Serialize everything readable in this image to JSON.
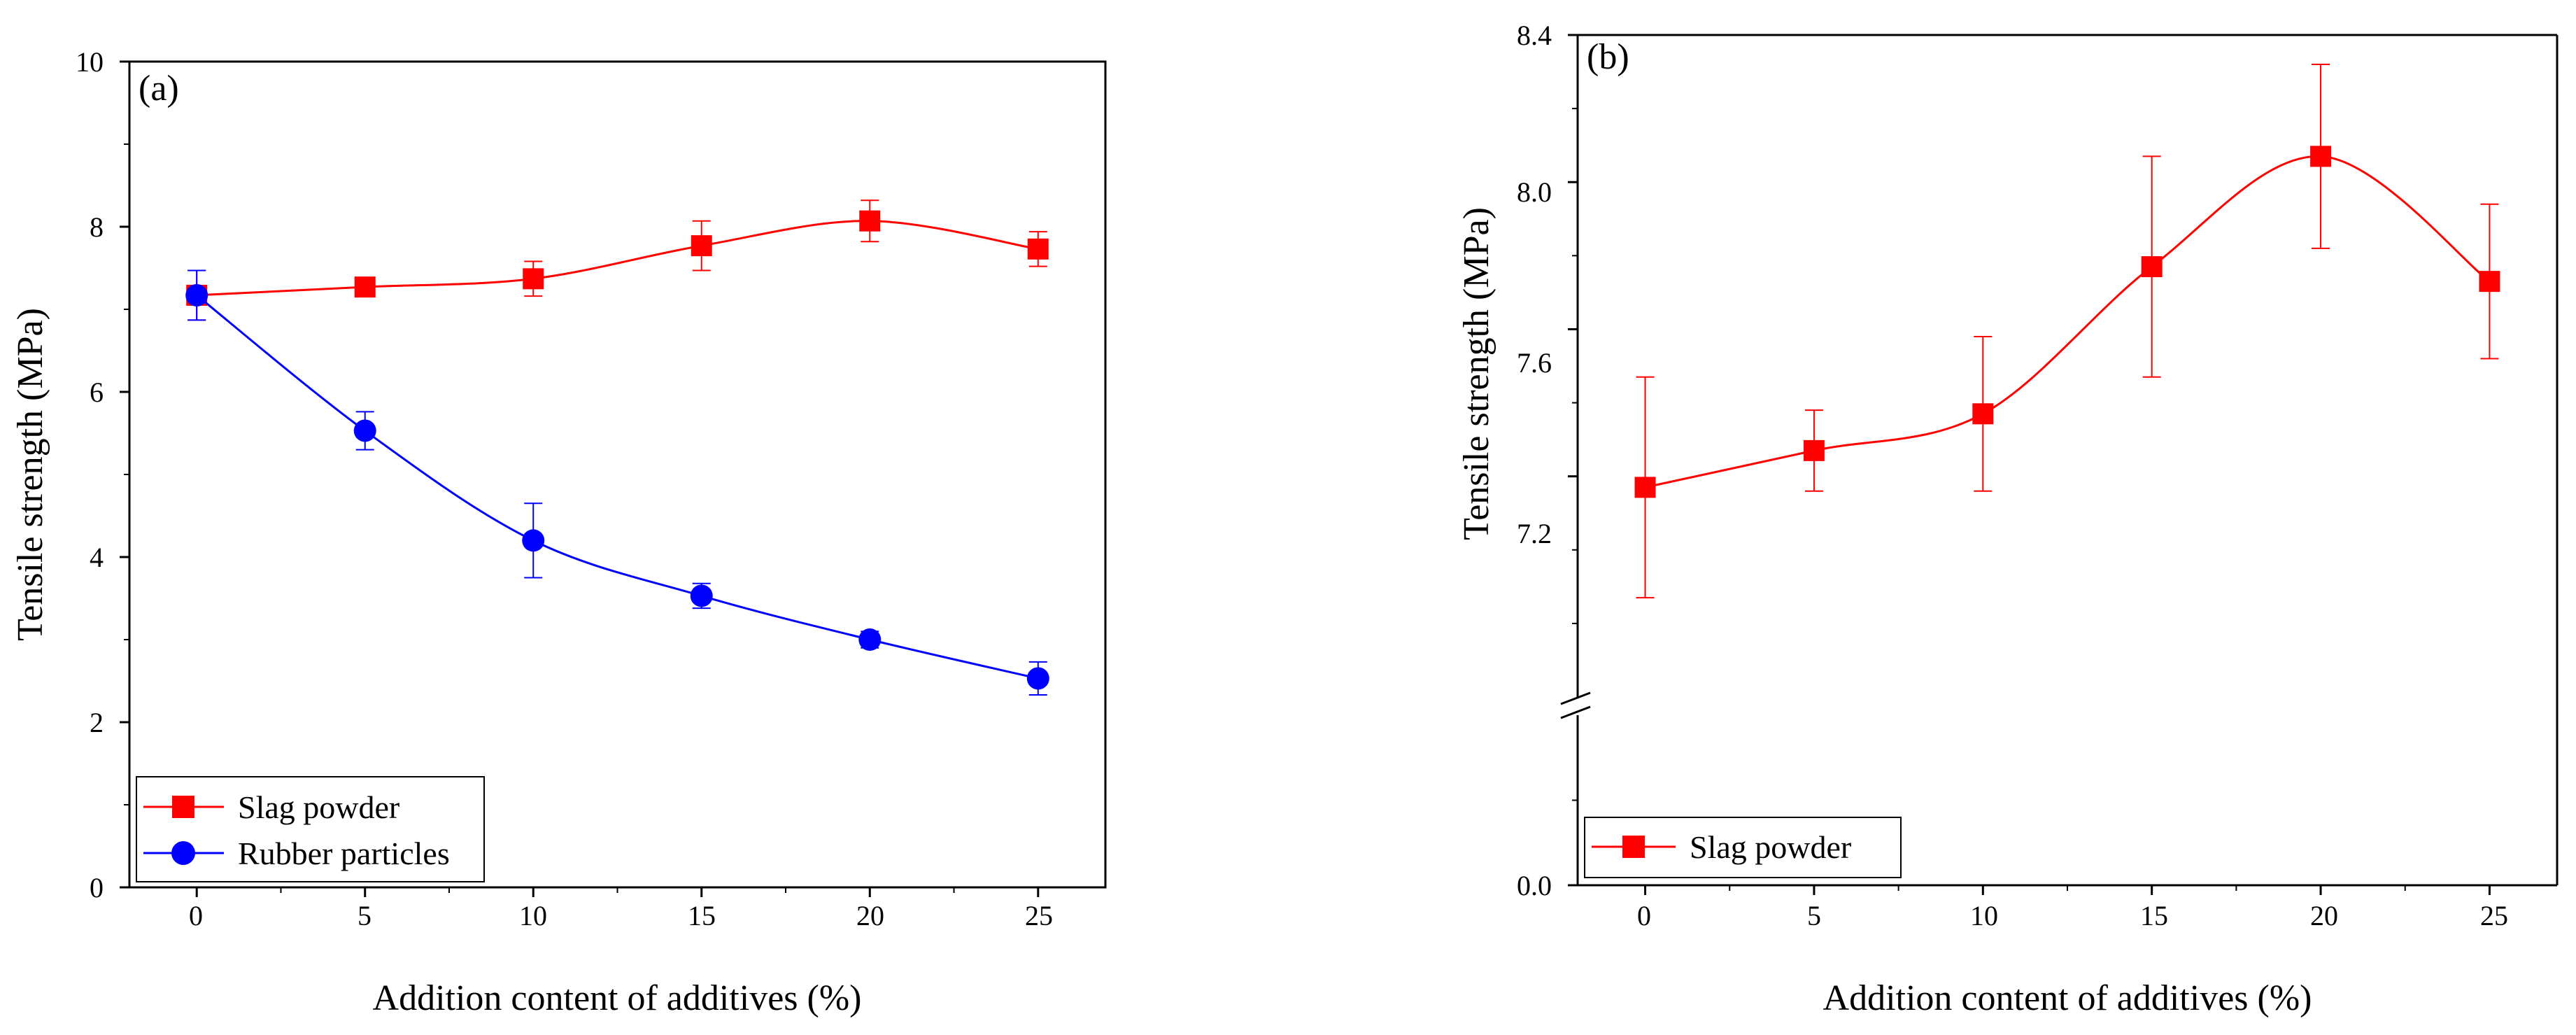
{
  "chart_data": [
    {
      "panel_label": "(a)",
      "type": "line",
      "xlabel": "Addition content of additives (%)",
      "ylabel": "Tensile strength (MPa)",
      "xlim": [
        -2,
        27
      ],
      "ylim": [
        0,
        10
      ],
      "x_ticks": [
        0,
        5,
        10,
        15,
        20,
        25
      ],
      "y_ticks": [
        0,
        2,
        4,
        6,
        8,
        10
      ],
      "x_tick_labels": [
        "0",
        "5",
        "10",
        "15",
        "20",
        "25"
      ],
      "y_tick_labels": [
        "0",
        "2",
        "4",
        "6",
        "8",
        "10"
      ],
      "legend_position": "bottom-left",
      "series": [
        {
          "name": "Slag powder",
          "color": "#ff0000",
          "marker": "square",
          "x": [
            0,
            5,
            10,
            15,
            20,
            25
          ],
          "values": [
            7.17,
            7.27,
            7.37,
            7.77,
            8.07,
            7.73
          ],
          "errors": [
            0.3,
            0.11,
            0.21,
            0.3,
            0.25,
            0.21
          ]
        },
        {
          "name": "Rubber particles",
          "color": "#0000ff",
          "marker": "circle",
          "x": [
            0,
            5,
            10,
            15,
            20,
            25
          ],
          "values": [
            7.17,
            5.53,
            4.2,
            3.53,
            3.0,
            2.53
          ],
          "errors": [
            0.3,
            0.23,
            0.45,
            0.15,
            0.1,
            0.2
          ]
        }
      ]
    },
    {
      "panel_label": "(b)",
      "type": "line",
      "xlabel": "Addition content of additives (%)",
      "ylabel": "Tensile strength (MPa)",
      "xlim": [
        -2,
        27
      ],
      "ylim": [
        0,
        8.4
      ],
      "axis_break": true,
      "lower_range": [
        0,
        0.2
      ],
      "upper_range": [
        6.6,
        8.4
      ],
      "x_ticks": [
        0,
        5,
        10,
        15,
        20,
        25
      ],
      "y_ticks": [
        0.0,
        7.2,
        7.6,
        8.0,
        8.4
      ],
      "x_tick_labels": [
        "0",
        "5",
        "10",
        "15",
        "20",
        "25"
      ],
      "y_tick_labels": [
        "0.0",
        "7.2",
        "7.6",
        "8.0",
        "8.4"
      ],
      "legend_position": "bottom-left",
      "series": [
        {
          "name": "Slag powder",
          "color": "#ff0000",
          "marker": "square",
          "x": [
            0,
            5,
            10,
            15,
            20,
            25
          ],
          "values": [
            7.17,
            7.27,
            7.37,
            7.77,
            8.07,
            7.73
          ],
          "errors": [
            0.3,
            0.11,
            0.21,
            0.3,
            0.25,
            0.21
          ]
        }
      ]
    }
  ]
}
